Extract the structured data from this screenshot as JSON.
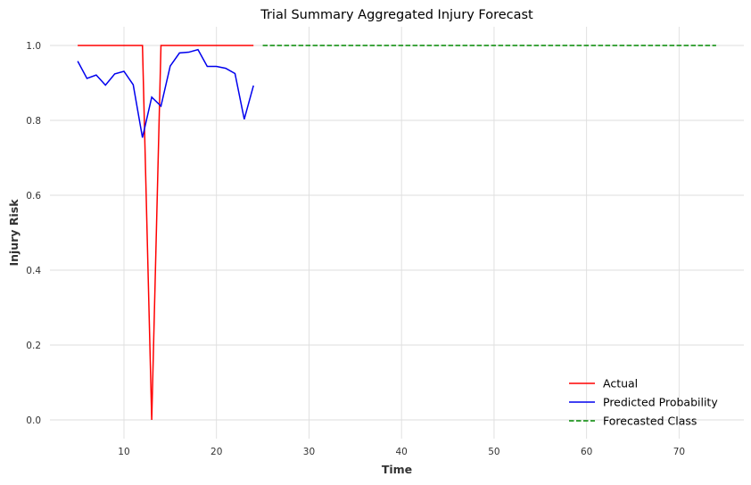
{
  "chart_data": {
    "type": "line",
    "title": "Trial Summary Aggregated Injury Forecast",
    "xlabel": "Time",
    "ylabel": "Injury Risk",
    "xlim": [
      2,
      77
    ],
    "ylim": [
      -0.05,
      1.05
    ],
    "xticks": [
      10,
      20,
      30,
      40,
      50,
      60,
      70
    ],
    "yticks": [
      0.0,
      0.2,
      0.4,
      0.6,
      0.8,
      1.0
    ],
    "xtick_labels": [
      "10",
      "20",
      "30",
      "40",
      "50",
      "60",
      "70"
    ],
    "ytick_labels": [
      "0.0",
      "0.2",
      "0.4",
      "0.6",
      "0.8",
      "1.0"
    ],
    "grid": true,
    "legend_position": "lower-right",
    "series": [
      {
        "name": "Actual",
        "color": "#ff0000",
        "style": "solid",
        "x": [
          5,
          6,
          7,
          8,
          9,
          10,
          11,
          12,
          13,
          14,
          15,
          16,
          17,
          18,
          19,
          20,
          21,
          22,
          23,
          24
        ],
        "y": [
          1,
          1,
          1,
          1,
          1,
          1,
          1,
          1,
          0,
          1,
          1,
          1,
          1,
          1,
          1,
          1,
          1,
          1,
          1,
          1
        ]
      },
      {
        "name": "Predicted Probability",
        "color": "#0000ee",
        "style": "solid",
        "x": [
          5,
          6,
          7,
          8,
          9,
          10,
          11,
          12,
          13,
          14,
          15,
          16,
          17,
          18,
          19,
          20,
          21,
          22,
          23,
          24
        ],
        "y": [
          0.958,
          0.912,
          0.921,
          0.894,
          0.924,
          0.931,
          0.895,
          0.754,
          0.862,
          0.838,
          0.945,
          0.98,
          0.982,
          0.989,
          0.944,
          0.944,
          0.939,
          0.925,
          0.803,
          0.893
        ]
      },
      {
        "name": "Forecasted Class",
        "color": "#008800",
        "style": "dashed",
        "x": [
          25,
          74
        ],
        "y": [
          1,
          1
        ]
      }
    ]
  }
}
